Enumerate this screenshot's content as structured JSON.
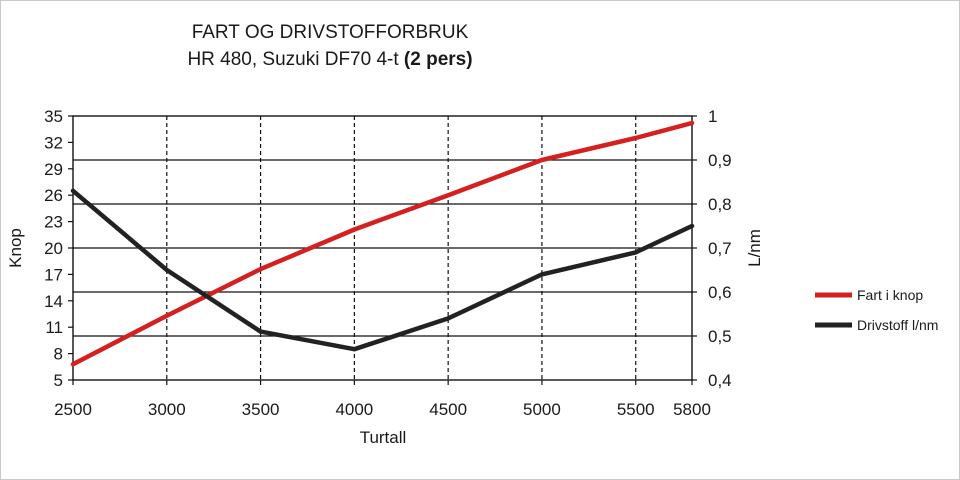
{
  "chart_data": {
    "type": "line",
    "title_line1": "FART OG DRIVSTOFFORBRUK",
    "title_line2_prefix": "HR 480, Suzuki DF70 4-t ",
    "title_line2_bold": "(2 pers)",
    "xlabel": "Turtall",
    "ylabel_left": "Knop",
    "ylabel_right": "L/nm",
    "x": [
      2500,
      3000,
      3500,
      4000,
      4500,
      5000,
      5500,
      5800
    ],
    "x_ticks": [
      "2500",
      "3000",
      "3500",
      "4000",
      "4500",
      "5000",
      "5500",
      "5800"
    ],
    "y_left_ticks": [
      "35",
      "32",
      "29",
      "26",
      "23",
      "20",
      "17",
      "14",
      "11",
      "8",
      "5"
    ],
    "y_right_ticks": [
      "1",
      "0,9",
      "0,8",
      "0,7",
      "0,6",
      "0,5",
      "0,4"
    ],
    "y_left_range": [
      5,
      35
    ],
    "y_right_range": [
      0.4,
      1.0
    ],
    "series": [
      {
        "name": "Fart i knop",
        "axis": "left",
        "color": "#d42020",
        "values": [
          6.8,
          12.3,
          17.6,
          22.1,
          26.0,
          30.0,
          32.5,
          34.2
        ]
      },
      {
        "name": "Drivstoff l/nm",
        "axis": "right",
        "color": "#222222",
        "values": [
          0.83,
          0.65,
          0.51,
          0.47,
          0.54,
          0.64,
          0.69,
          0.75
        ]
      }
    ],
    "grid": {
      "horizontal": "solid",
      "vertical": "dashed"
    },
    "legend_position": "right"
  }
}
